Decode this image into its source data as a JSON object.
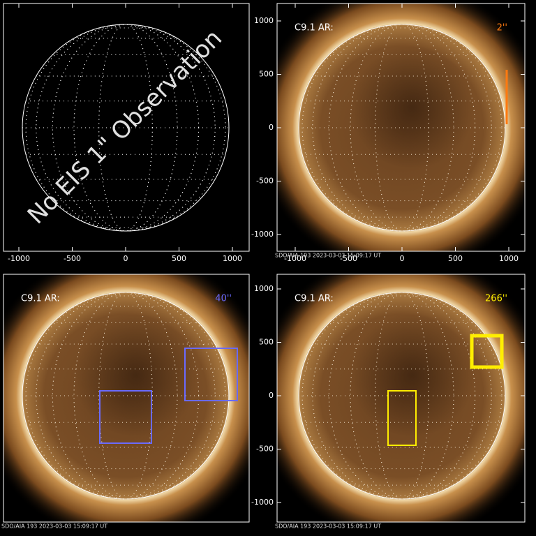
{
  "panels": [
    {
      "overlay_text": "No EIS 1\" Observation",
      "x_ticks": [
        -1000,
        -500,
        0,
        500,
        1000
      ]
    },
    {
      "label": "C9.1 AR:",
      "size_label": "2''",
      "x_ticks": [
        -1000,
        -500,
        0,
        500,
        1000
      ],
      "y_ticks": [
        1000,
        500,
        0,
        -500,
        -1000
      ],
      "footer": "SDO/AIA 193  2023-03-03 15:09:17 UT"
    },
    {
      "label": "C9.1 AR:",
      "size_label": "40''",
      "footer": "SDO/AIA 193  2023-03-03 15:09:17 UT"
    },
    {
      "label": "C9.1 AR:",
      "size_label": "266''",
      "y_ticks": [
        1000,
        500,
        0,
        -500,
        -1000
      ],
      "footer": "SDO/AIA 193  2023-03-03 15:09:17 UT"
    }
  ]
}
